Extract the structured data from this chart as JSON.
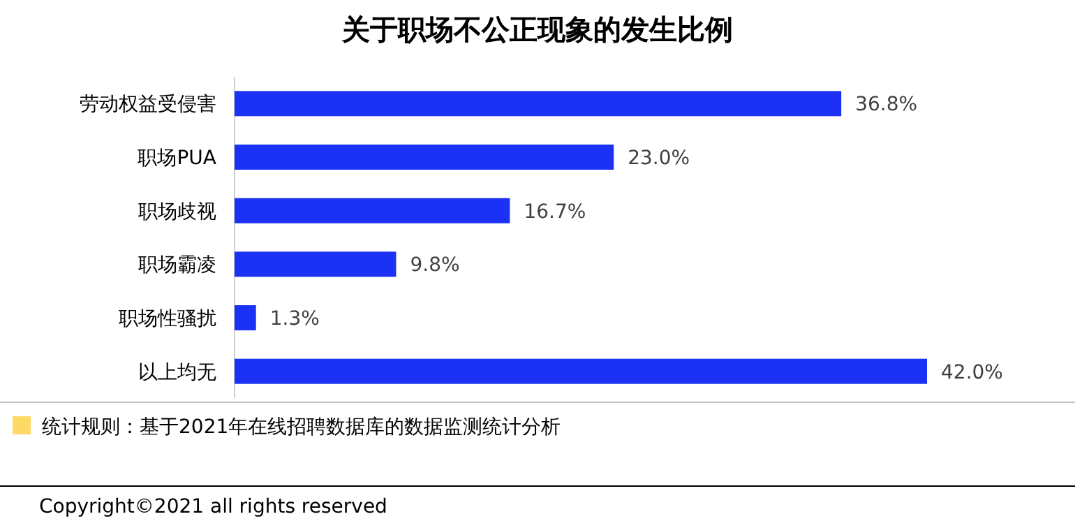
{
  "chart_data": {
    "type": "bar",
    "orientation": "horizontal",
    "title": "关于职场不公正现象的发生比例",
    "categories": [
      "劳动权益受侵害",
      "职场PUA",
      "职场歧视",
      "职场霸凌",
      "职场性骚扰",
      "以上均无"
    ],
    "values": [
      36.8,
      23.0,
      16.7,
      9.8,
      1.3,
      42.0
    ],
    "value_labels": [
      "36.8%",
      "23.0%",
      "16.7%",
      "9.8%",
      "1.3%",
      "42.0%"
    ],
    "color": "#1b32f5",
    "annotations": [
      "统计规则：基于2021年在线招聘数据库的数据监测统计分析",
      "Copyright©2021 all rights reserved"
    ]
  }
}
